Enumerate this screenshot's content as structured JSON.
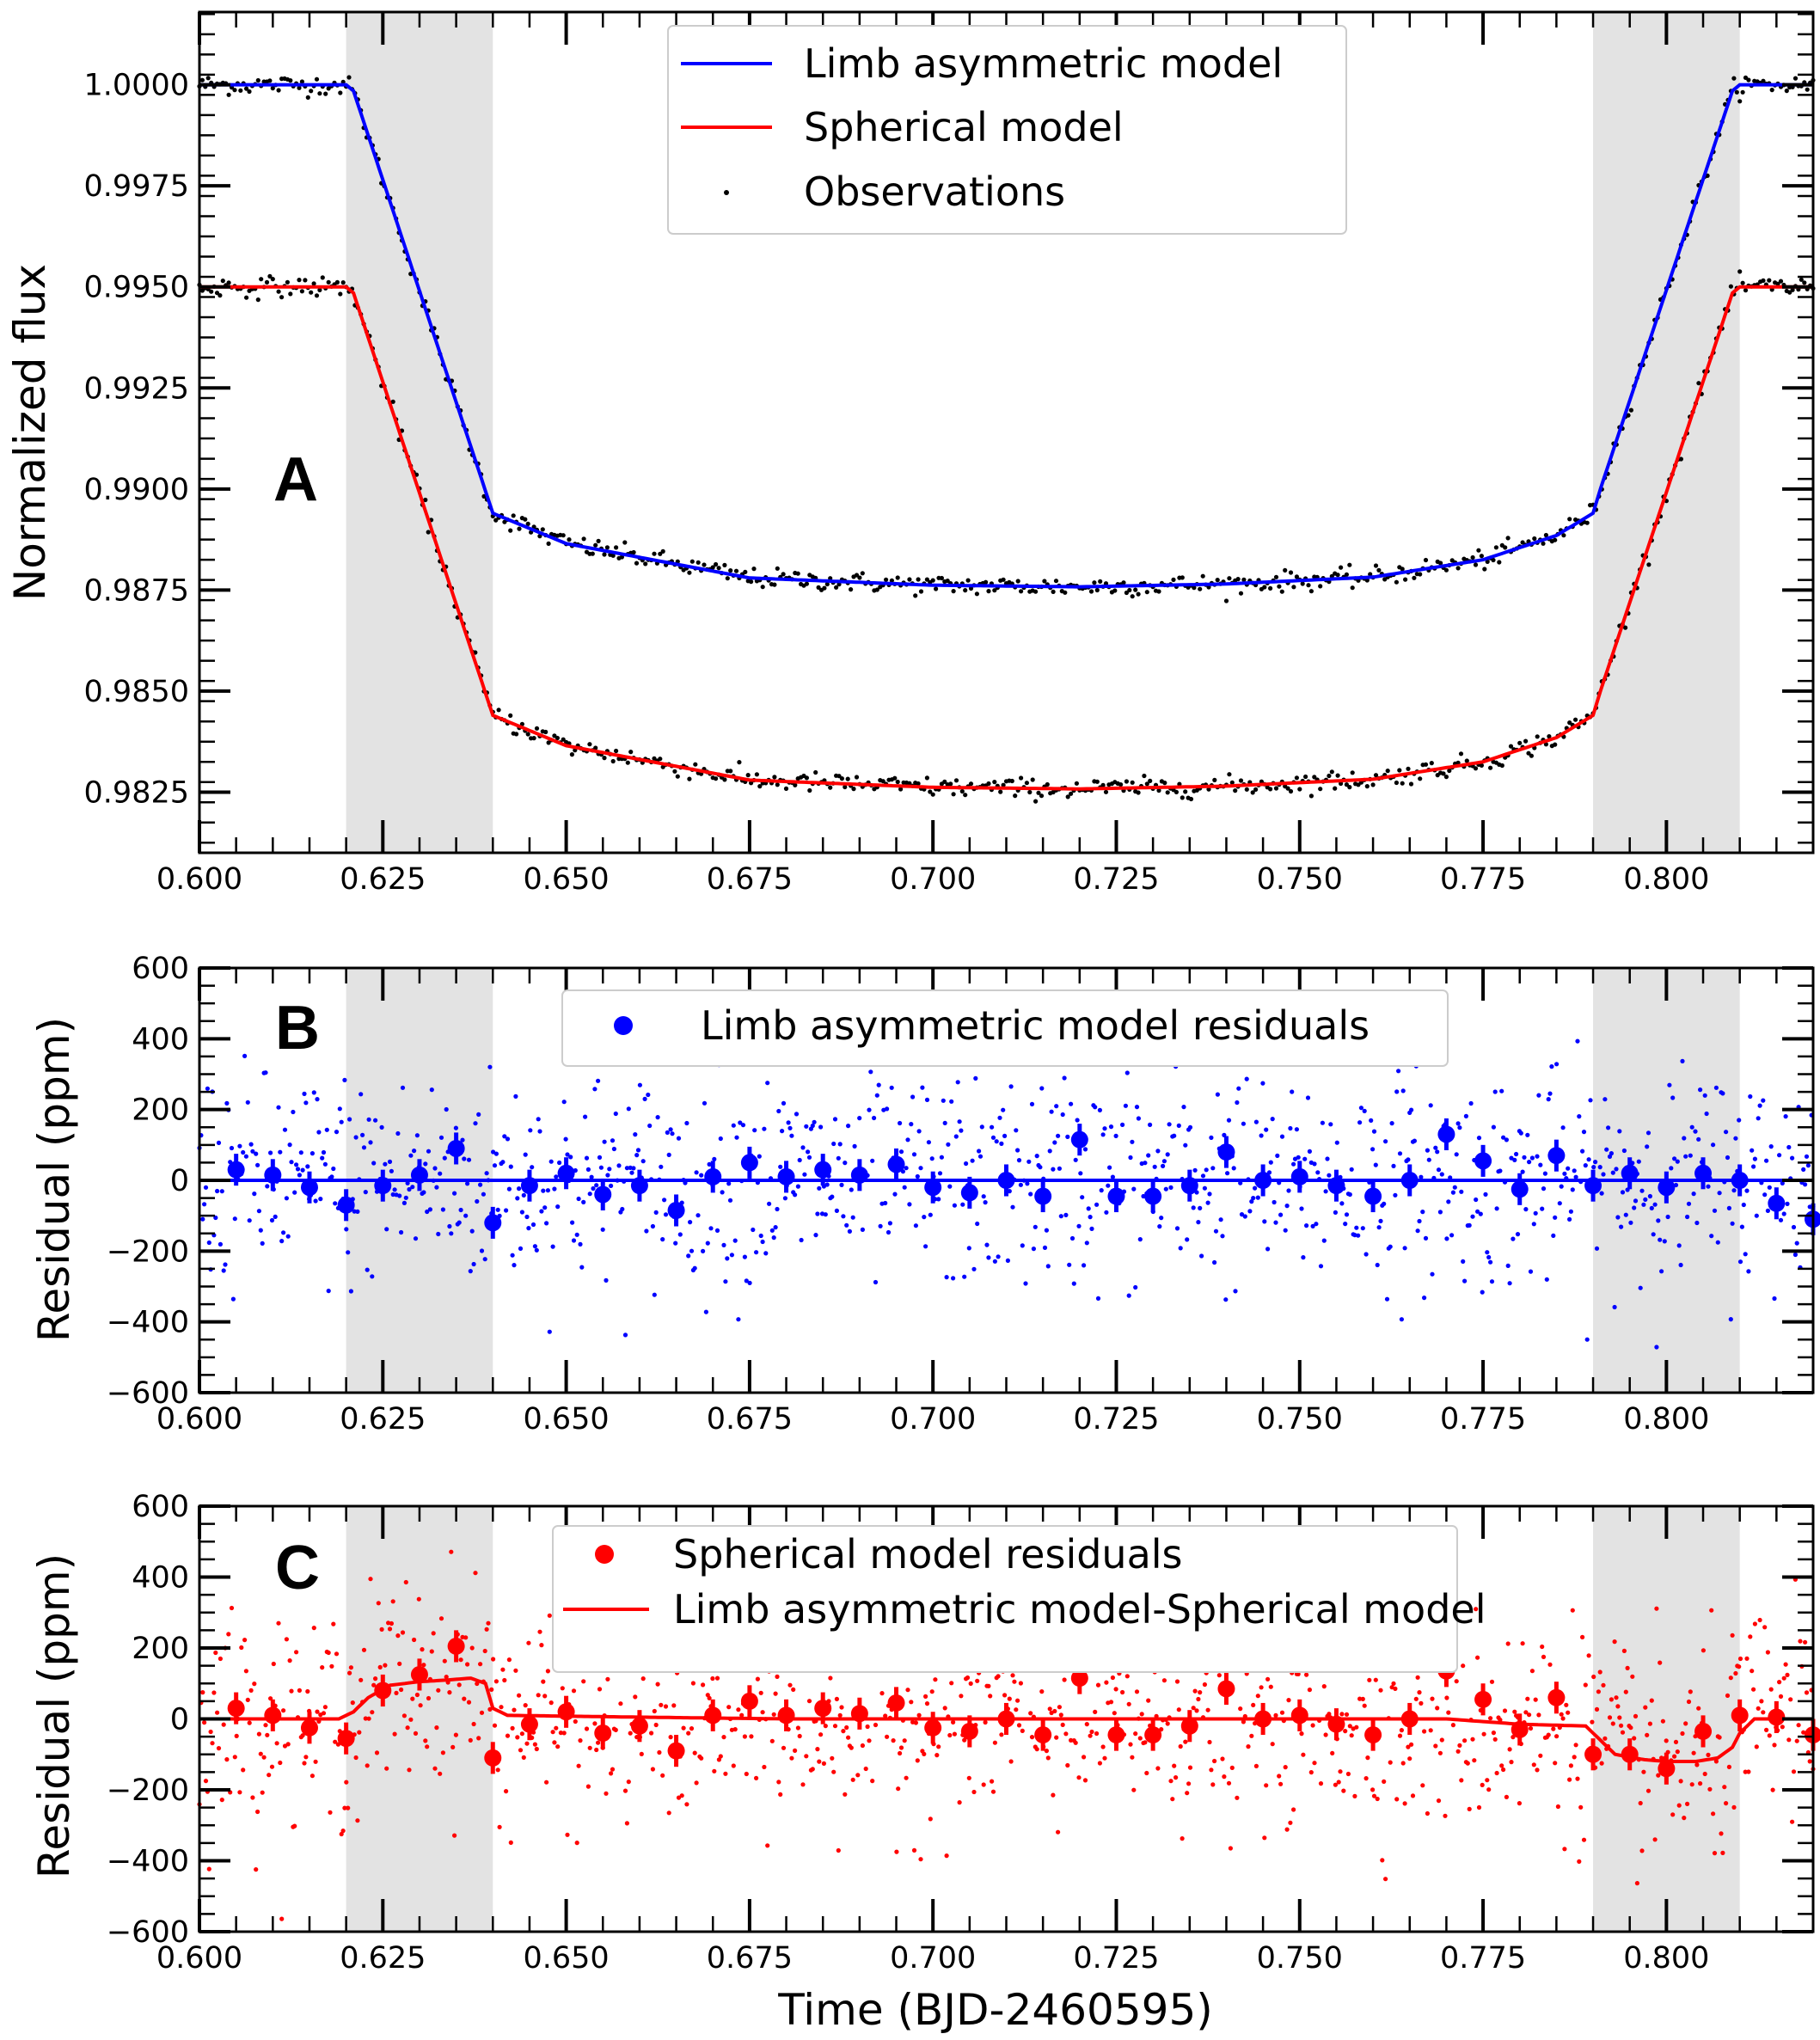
{
  "chart_data": [
    {
      "type": "line",
      "panel_label": "A",
      "xlabel": "",
      "ylabel": "Normalized flux",
      "xlim": [
        0.6,
        0.82
      ],
      "ylim": [
        0.981,
        1.0018
      ],
      "xticks": [
        "0.600",
        "0.625",
        "0.650",
        "0.675",
        "0.700",
        "0.725",
        "0.750",
        "0.775",
        "0.800"
      ],
      "yticks": [
        "0.9825",
        "0.9850",
        "0.9875",
        "0.9900",
        "0.9925",
        "0.9950",
        "0.9975",
        "1.0000"
      ],
      "shaded_regions": [
        [
          0.62,
          0.64
        ],
        [
          0.79,
          0.81
        ]
      ],
      "legend_position": "top-center",
      "series": [
        {
          "name": "Limb asymmetric model",
          "color": "#0000ff",
          "kind": "model",
          "x": [
            0.6,
            0.62,
            0.621,
            0.64,
            0.65,
            0.675,
            0.7,
            0.72,
            0.74,
            0.76,
            0.775,
            0.785,
            0.79,
            0.791,
            0.809,
            0.81,
            0.82
          ],
          "y": [
            1.0,
            1.0,
            0.99985,
            0.9894,
            0.98865,
            0.9878,
            0.98762,
            0.98758,
            0.98765,
            0.98782,
            0.98825,
            0.98885,
            0.9894,
            0.99,
            0.99985,
            1.0,
            1.0
          ]
        },
        {
          "name": "Spherical model",
          "color": "#ff0000",
          "kind": "model",
          "x": [
            0.6,
            0.62,
            0.621,
            0.64,
            0.65,
            0.675,
            0.7,
            0.72,
            0.74,
            0.76,
            0.775,
            0.785,
            0.79,
            0.791,
            0.809,
            0.81,
            0.82
          ],
          "y": [
            0.995,
            0.995,
            0.99485,
            0.9844,
            0.98365,
            0.9828,
            0.98262,
            0.98258,
            0.98265,
            0.98282,
            0.98325,
            0.98385,
            0.9844,
            0.985,
            0.99485,
            0.995,
            0.995
          ]
        },
        {
          "name": "Observations",
          "color": "#000000",
          "kind": "scatter",
          "scatter_rms": 0.00012
        }
      ]
    },
    {
      "type": "scatter",
      "panel_label": "B",
      "xlabel": "",
      "ylabel": "Residual (ppm)",
      "xlim": [
        0.6,
        0.82
      ],
      "ylim": [
        -600,
        600
      ],
      "xticks": [
        "0.600",
        "0.625",
        "0.650",
        "0.675",
        "0.700",
        "0.725",
        "0.750",
        "0.775",
        "0.800"
      ],
      "yticks": [
        "−600",
        "−400",
        "−200",
        "0",
        "200",
        "400",
        "600"
      ],
      "shaded_regions": [
        [
          0.62,
          0.64
        ],
        [
          0.79,
          0.81
        ]
      ],
      "legend_position": "top-center",
      "color": "#0000ff",
      "series": [
        {
          "name": "Limb asymmetric model residuals",
          "kind": "binned",
          "x": [
            0.605,
            0.61,
            0.615,
            0.62,
            0.625,
            0.63,
            0.635,
            0.64,
            0.645,
            0.65,
            0.655,
            0.66,
            0.665,
            0.67,
            0.675,
            0.68,
            0.685,
            0.69,
            0.695,
            0.7,
            0.705,
            0.71,
            0.715,
            0.72,
            0.725,
            0.73,
            0.735,
            0.74,
            0.745,
            0.75,
            0.755,
            0.76,
            0.765,
            0.77,
            0.775,
            0.78,
            0.785,
            0.79,
            0.795,
            0.8,
            0.805,
            0.81,
            0.815,
            0.82
          ],
          "y": [
            30,
            15,
            -20,
            -70,
            -15,
            15,
            90,
            -120,
            -15,
            20,
            -40,
            -15,
            -85,
            10,
            50,
            10,
            30,
            15,
            45,
            -20,
            -35,
            0,
            -45,
            115,
            -45,
            -45,
            -15,
            80,
            0,
            10,
            -15,
            -45,
            0,
            130,
            55,
            -25,
            70,
            -15,
            20,
            -20,
            20,
            0,
            -65,
            -110
          ],
          "err": [
            45,
            45,
            45,
            45,
            45,
            45,
            45,
            45,
            45,
            45,
            45,
            45,
            45,
            45,
            45,
            45,
            45,
            45,
            45,
            45,
            45,
            45,
            45,
            45,
            45,
            45,
            45,
            45,
            45,
            45,
            45,
            45,
            45,
            45,
            45,
            45,
            45,
            45,
            45,
            45,
            45,
            45,
            45,
            45
          ]
        },
        {
          "name": "",
          "kind": "model",
          "x": [
            0.6,
            0.82
          ],
          "y": [
            0,
            0
          ]
        }
      ]
    },
    {
      "type": "scatter",
      "panel_label": "C",
      "xlabel": "Time (BJD-2460595)",
      "ylabel": "Residual (ppm)",
      "xlim": [
        0.6,
        0.82
      ],
      "ylim": [
        -600,
        600
      ],
      "xticks": [
        "0.600",
        "0.625",
        "0.650",
        "0.675",
        "0.700",
        "0.725",
        "0.750",
        "0.775",
        "0.800"
      ],
      "yticks": [
        "−600",
        "−400",
        "−200",
        "0",
        "200",
        "400",
        "600"
      ],
      "shaded_regions": [
        [
          0.62,
          0.64
        ],
        [
          0.79,
          0.81
        ]
      ],
      "legend_position": "top-center",
      "color": "#ff0000",
      "series": [
        {
          "name": "Spherical model residuals",
          "kind": "binned",
          "x": [
            0.605,
            0.61,
            0.615,
            0.62,
            0.625,
            0.63,
            0.635,
            0.64,
            0.645,
            0.65,
            0.655,
            0.66,
            0.665,
            0.67,
            0.675,
            0.68,
            0.685,
            0.69,
            0.695,
            0.7,
            0.705,
            0.71,
            0.715,
            0.72,
            0.725,
            0.73,
            0.735,
            0.74,
            0.745,
            0.75,
            0.755,
            0.76,
            0.765,
            0.77,
            0.775,
            0.78,
            0.785,
            0.79,
            0.795,
            0.8,
            0.805,
            0.81,
            0.815,
            0.82
          ],
          "y": [
            30,
            10,
            -25,
            -55,
            80,
            125,
            205,
            -110,
            -15,
            20,
            -40,
            -20,
            -90,
            10,
            50,
            10,
            30,
            15,
            45,
            -25,
            -35,
            0,
            -45,
            115,
            -45,
            -45,
            -20,
            85,
            0,
            10,
            -15,
            -45,
            0,
            135,
            55,
            -30,
            60,
            -100,
            -100,
            -140,
            -35,
            10,
            5,
            -45
          ],
          "err": [
            45,
            45,
            45,
            45,
            45,
            45,
            45,
            45,
            45,
            45,
            45,
            45,
            45,
            45,
            45,
            45,
            45,
            45,
            45,
            45,
            45,
            45,
            45,
            45,
            45,
            45,
            45,
            45,
            45,
            45,
            45,
            45,
            45,
            45,
            45,
            45,
            45,
            45,
            45,
            45,
            45,
            45,
            45,
            45
          ]
        },
        {
          "name": "Limb asymmetric model-Spherical model",
          "kind": "model",
          "x": [
            0.6,
            0.619,
            0.621,
            0.623,
            0.626,
            0.63,
            0.634,
            0.637,
            0.639,
            0.64,
            0.642,
            0.66,
            0.68,
            0.7,
            0.72,
            0.74,
            0.76,
            0.77,
            0.78,
            0.789,
            0.791,
            0.793,
            0.797,
            0.8,
            0.804,
            0.807,
            0.809,
            0.81,
            0.812,
            0.82
          ],
          "y": [
            0,
            0,
            20,
            60,
            95,
            105,
            110,
            115,
            100,
            30,
            10,
            5,
            0,
            0,
            0,
            0,
            0,
            0,
            -15,
            -20,
            -60,
            -100,
            -115,
            -120,
            -120,
            -110,
            -80,
            -40,
            0,
            0
          ]
        }
      ]
    }
  ]
}
